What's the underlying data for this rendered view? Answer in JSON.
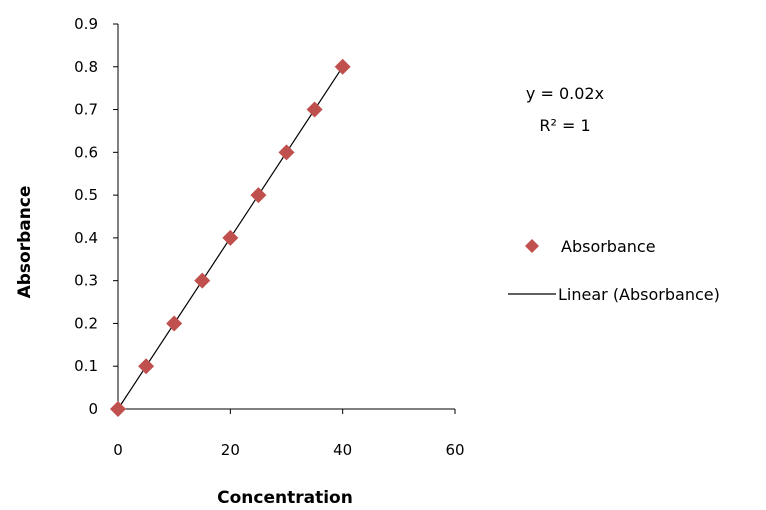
{
  "chart_data": {
    "type": "scatter",
    "xlabel": "Concentration",
    "ylabel": "Absorbance",
    "xlim": [
      0,
      60
    ],
    "ylim": [
      0,
      0.9
    ],
    "x_ticks": [
      "0",
      "20",
      "40",
      "60"
    ],
    "y_ticks": [
      "0",
      "0.1",
      "0.2",
      "0.3",
      "0.4",
      "0.5",
      "0.6",
      "0.7",
      "0.8",
      "0.9"
    ],
    "grid": false,
    "legend_position": "right",
    "series": [
      {
        "name": "Absorbance",
        "marker": "diamond",
        "color": "#C0504D",
        "x": [
          0,
          5,
          10,
          15,
          20,
          25,
          30,
          35,
          40
        ],
        "y": [
          0,
          0.1,
          0.2,
          0.3,
          0.4,
          0.5,
          0.6,
          0.7,
          0.8
        ]
      }
    ],
    "trendline": {
      "name": "Linear (Absorbance)",
      "type": "linear",
      "slope": 0.02,
      "intercept": 0,
      "x_range": [
        0,
        40
      ],
      "color": "#000000",
      "equation_text": "y = 0.02x",
      "r2_text": "R² = 1"
    }
  }
}
